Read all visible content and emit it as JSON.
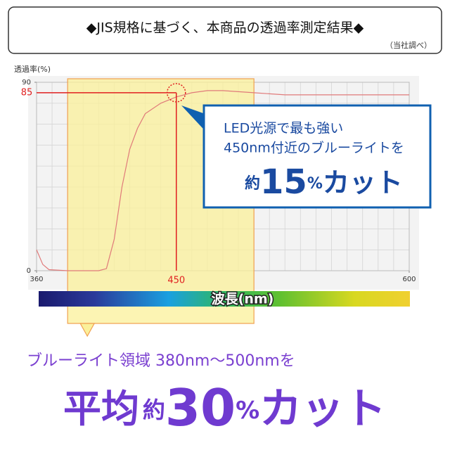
{
  "header": {
    "title": "◆JIS規格に基づく、本商品の透過率測定結果◆",
    "note": "（当社調べ）"
  },
  "chart_data": {
    "type": "line",
    "ylabel": "透過率(%)",
    "xlabel": "波長(nm)",
    "x": [
      360,
      364,
      368,
      380,
      400,
      405,
      410,
      415,
      420,
      425,
      430,
      440,
      450,
      460,
      470,
      480,
      500,
      520,
      550,
      600
    ],
    "series": [
      {
        "name": "透過率",
        "color": "#e07a7a",
        "values": [
          10,
          3,
          0.5,
          0,
          0,
          1,
          15,
          40,
          58,
          68,
          75,
          80,
          83,
          85,
          86,
          86,
          85,
          84,
          84,
          84
        ]
      }
    ],
    "xlim": [
      360,
      600
    ],
    "ylim": [
      0,
      90
    ],
    "xticks": [
      360,
      600
    ],
    "yticks": [
      0,
      90
    ],
    "highlight": [
      380,
      500
    ],
    "marker": {
      "x": 450,
      "y": 85
    }
  },
  "callout": {
    "line1": "LED光源で最も強い",
    "line2": "450nm付近のブルーライトを",
    "prefix": "約",
    "number": "15",
    "unit": "%",
    "suffix": "カット"
  },
  "footer": {
    "line1": "ブルーライト領域 380nm～500nmを",
    "lead": "平均",
    "prefix": "約",
    "number": "30",
    "unit": "%",
    "suffix": "カット"
  }
}
